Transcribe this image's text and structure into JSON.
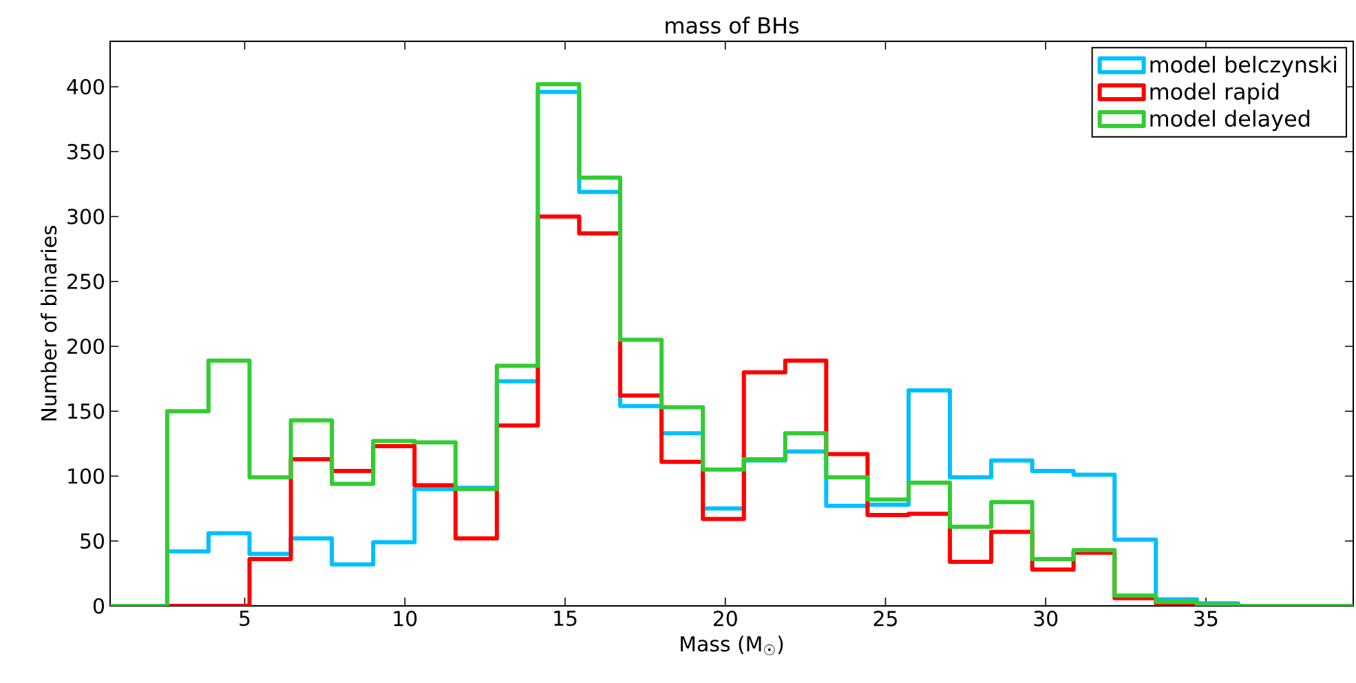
{
  "chart_data": {
    "type": "histogram",
    "title": "mass of BHs",
    "xlabel": "Mass (M$_{☉}$)",
    "ylabel": "Number of binaries",
    "bins": [
      0.8,
      2.58,
      3.87,
      5.15,
      6.44,
      7.72,
      9.01,
      10.3,
      11.58,
      12.87,
      14.15,
      15.44,
      16.72,
      18.01,
      19.3,
      20.58,
      21.87,
      23.15,
      24.44,
      25.72,
      27.01,
      28.3,
      29.58,
      30.87,
      32.15,
      33.44,
      34.72,
      36.01,
      37.3,
      38.58,
      39.6
    ],
    "series": [
      {
        "name": "model belczynski",
        "color": "#00bfff",
        "values": [
          0,
          42,
          56,
          40,
          52,
          32,
          49,
          90,
          91,
          173,
          396,
          319,
          154,
          133,
          75,
          112,
          119,
          77,
          78,
          166,
          99,
          112,
          104,
          101,
          51,
          5,
          2,
          0,
          0,
          0
        ]
      },
      {
        "name": "model rapid",
        "color": "#ff0000",
        "values": [
          0,
          0,
          0,
          36,
          113,
          104,
          123,
          93,
          52,
          139,
          300,
          287,
          162,
          111,
          67,
          180,
          189,
          117,
          70,
          71,
          34,
          57,
          28,
          41,
          6,
          2,
          0,
          0,
          0,
          0
        ]
      },
      {
        "name": "model delayed",
        "color": "#33cc33",
        "values": [
          0,
          150,
          189,
          99,
          143,
          94,
          127,
          126,
          90,
          185,
          402,
          330,
          205,
          153,
          105,
          113,
          133,
          99,
          82,
          95,
          61,
          80,
          36,
          43,
          8,
          3,
          1,
          0,
          0,
          0
        ]
      }
    ],
    "xlim": [
      0.8,
      39.6
    ],
    "ylim": [
      0,
      435
    ],
    "xticks": [
      5,
      10,
      15,
      20,
      25,
      30,
      35
    ],
    "yticks": [
      0,
      50,
      100,
      150,
      200,
      250,
      300,
      350,
      400
    ],
    "legend": "top right",
    "grid": false
  }
}
